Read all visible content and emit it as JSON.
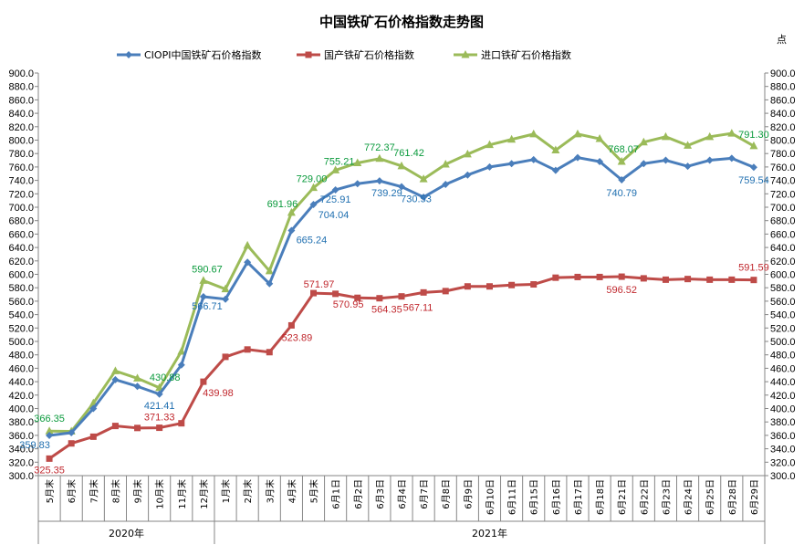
{
  "chart_data": {
    "type": "line",
    "title": "中国铁矿石价格指数走势图",
    "unit_label": "点",
    "ylim": [
      300,
      900
    ],
    "ytick_step": 20,
    "grid": false,
    "legend_position": "top",
    "categories": [
      "5月末",
      "6月末",
      "7月末",
      "8月末",
      "9月末",
      "10月末",
      "11月末",
      "12月末",
      "1月末",
      "2月末",
      "3月末",
      "4月末",
      "5月末",
      "6月1日",
      "6月2日",
      "6月3日",
      "6月4日",
      "6月7日",
      "6月8日",
      "6月9日",
      "6月10日",
      "6月11日",
      "6月15日",
      "6月16日",
      "6月17日",
      "6月18日",
      "6月21日",
      "6月22日",
      "6月23日",
      "6月24日",
      "6月25日",
      "6月28日",
      "6月29日"
    ],
    "year_groups": [
      {
        "label": "2020年",
        "start": 0,
        "end": 7
      },
      {
        "label": "2021年",
        "start": 8,
        "end": 32
      }
    ],
    "series": [
      {
        "name": "CIOPI中国铁矿石价格指数",
        "color": "#4a7ebb",
        "marker": "diamond",
        "label_color": "#1f6fb0",
        "values": [
          359.83,
          364,
          400,
          443,
          433,
          421.41,
          465,
          566.71,
          563,
          618,
          586,
          665.24,
          704.04,
          725.91,
          735,
          739.29,
          730.53,
          715,
          734,
          748,
          760,
          765,
          771,
          755,
          774,
          768,
          740.79,
          765,
          770,
          761,
          770,
          773,
          759.54
        ],
        "labels": [
          {
            "i": 0,
            "text": "359.83"
          },
          {
            "i": 5,
            "text": "421.41"
          },
          {
            "i": 7,
            "text": "566.71"
          },
          {
            "i": 11,
            "text": "665.24"
          },
          {
            "i": 12,
            "text": "704.04"
          },
          {
            "i": 13,
            "text": "725.91"
          },
          {
            "i": 15,
            "text": "739.29"
          },
          {
            "i": 16,
            "text": "730.53"
          },
          {
            "i": 26,
            "text": "740.79"
          },
          {
            "i": 32,
            "text": "759.54"
          }
        ]
      },
      {
        "name": "国产铁矿石价格指数",
        "color": "#be4b48",
        "marker": "square",
        "label_color": "#c0272d",
        "values": [
          325.35,
          348,
          358,
          374,
          371,
          371.33,
          378,
          439.98,
          477,
          488,
          484,
          523.89,
          571.97,
          570.95,
          565,
          564.35,
          567.11,
          573,
          575,
          582,
          582,
          584,
          585,
          595,
          596,
          596,
          596.52,
          594,
          592,
          593,
          592,
          592,
          591.59
        ],
        "labels": [
          {
            "i": 0,
            "text": "325.35"
          },
          {
            "i": 5,
            "text": "371.33"
          },
          {
            "i": 7,
            "text": "439.98"
          },
          {
            "i": 11,
            "text": "523.89"
          },
          {
            "i": 12,
            "text": "571.97"
          },
          {
            "i": 13,
            "text": "570.95"
          },
          {
            "i": 15,
            "text": "564.35"
          },
          {
            "i": 16,
            "text": "567.11"
          },
          {
            "i": 26,
            "text": "596.52"
          },
          {
            "i": 32,
            "text": "591.59"
          }
        ]
      },
      {
        "name": "进口铁矿石价格指数",
        "color": "#9bbb59",
        "marker": "triangle",
        "label_color": "#0a9a3c",
        "values": [
          366.35,
          366,
          408,
          456,
          445,
          430.88,
          485,
          590.67,
          578,
          643,
          605,
          691.96,
          729.0,
          755.21,
          766,
          772.37,
          761.42,
          742,
          764,
          779,
          793,
          801,
          809,
          785,
          809,
          802,
          768.07,
          797,
          805,
          792,
          805,
          810,
          791.3
        ],
        "labels": [
          {
            "i": 0,
            "text": "366.35"
          },
          {
            "i": 5,
            "text": "430.88"
          },
          {
            "i": 7,
            "text": "590.67"
          },
          {
            "i": 11,
            "text": "691.96"
          },
          {
            "i": 12,
            "text": "729.00"
          },
          {
            "i": 13,
            "text": "755.21"
          },
          {
            "i": 15,
            "text": "772.37"
          },
          {
            "i": 16,
            "text": "761.42"
          },
          {
            "i": 26,
            "text": "768.07"
          },
          {
            "i": 32,
            "text": "791.30"
          }
        ]
      }
    ]
  }
}
